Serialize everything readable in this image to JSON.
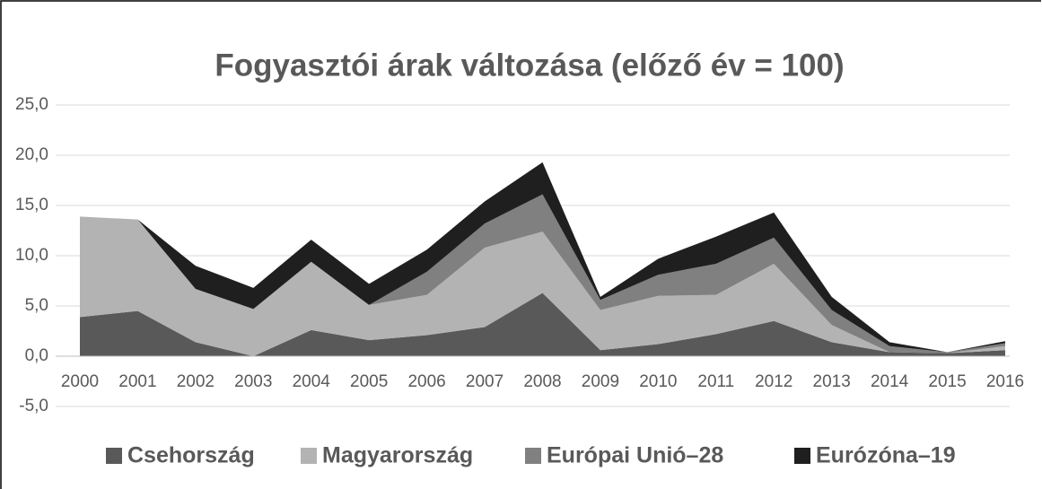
{
  "chart_data": {
    "type": "stacked_area",
    "title": "Fogyasztói árak változása (előző év = 100)",
    "categories": [
      "2000",
      "2001",
      "2002",
      "2003",
      "2004",
      "2005",
      "2006",
      "2007",
      "2008",
      "2009",
      "2010",
      "2011",
      "2012",
      "2013",
      "2014",
      "2015",
      "2016"
    ],
    "series": [
      {
        "name": "Csehország",
        "color": "#595959",
        "values": [
          3.9,
          4.5,
          1.4,
          0.0,
          2.6,
          1.6,
          2.1,
          2.9,
          6.3,
          0.6,
          1.2,
          2.2,
          3.5,
          1.4,
          0.4,
          0.3,
          0.6
        ]
      },
      {
        "name": "Magyarország",
        "color": "#b3b3b3",
        "values": [
          10.0,
          9.1,
          5.3,
          4.7,
          6.8,
          3.5,
          4.0,
          7.9,
          6.1,
          4.0,
          4.8,
          3.9,
          5.7,
          1.7,
          0.0,
          0.0,
          0.4
        ]
      },
      {
        "name": "Európai Unió–28",
        "color": "#808080",
        "values": [
          0,
          0,
          0,
          0,
          0,
          0,
          2.3,
          2.4,
          3.7,
          1.0,
          2.1,
          3.1,
          2.6,
          1.5,
          0.6,
          0.1,
          0.3
        ]
      },
      {
        "name": "Eurózóna–19",
        "color": "#1f1f1f",
        "values": [
          0,
          0,
          2.3,
          2.1,
          2.2,
          2.1,
          2.2,
          2.2,
          3.2,
          0.3,
          1.6,
          2.7,
          2.5,
          1.3,
          0.4,
          0.0,
          0.2
        ]
      }
    ],
    "ylim": [
      -5,
      25
    ],
    "yticks": [
      {
        "value": -5,
        "label": "-5,0"
      },
      {
        "value": 0,
        "label": "0,0"
      },
      {
        "value": 5,
        "label": "5,0"
      },
      {
        "value": 10,
        "label": "10,0"
      },
      {
        "value": 15,
        "label": "15,0"
      },
      {
        "value": 20,
        "label": "20,0"
      },
      {
        "value": 25,
        "label": "25,0"
      }
    ],
    "grid": true,
    "legend": "bottom"
  }
}
